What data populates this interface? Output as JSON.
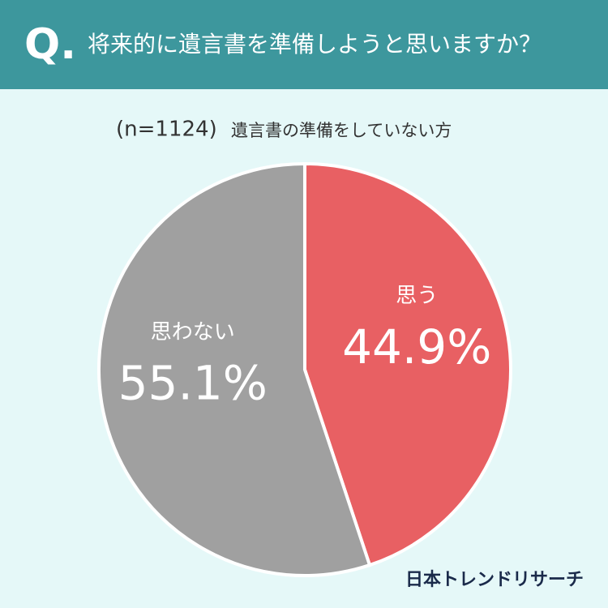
{
  "chart_data": {
    "type": "pie",
    "question_marker": "Q.",
    "title": "将来的に遺言書を準備しようと思いますか？",
    "sample_size": "(n=1124)",
    "subtitle": "遺言書の準備をしていない方",
    "categories": [
      "思う",
      "思わない"
    ],
    "values": [
      44.9,
      55.1
    ],
    "value_labels": [
      "44.9%",
      "55.1%"
    ],
    "colors": [
      "#e86063",
      "#a0a0a0"
    ],
    "source": "日本トレンドリサーチ"
  }
}
